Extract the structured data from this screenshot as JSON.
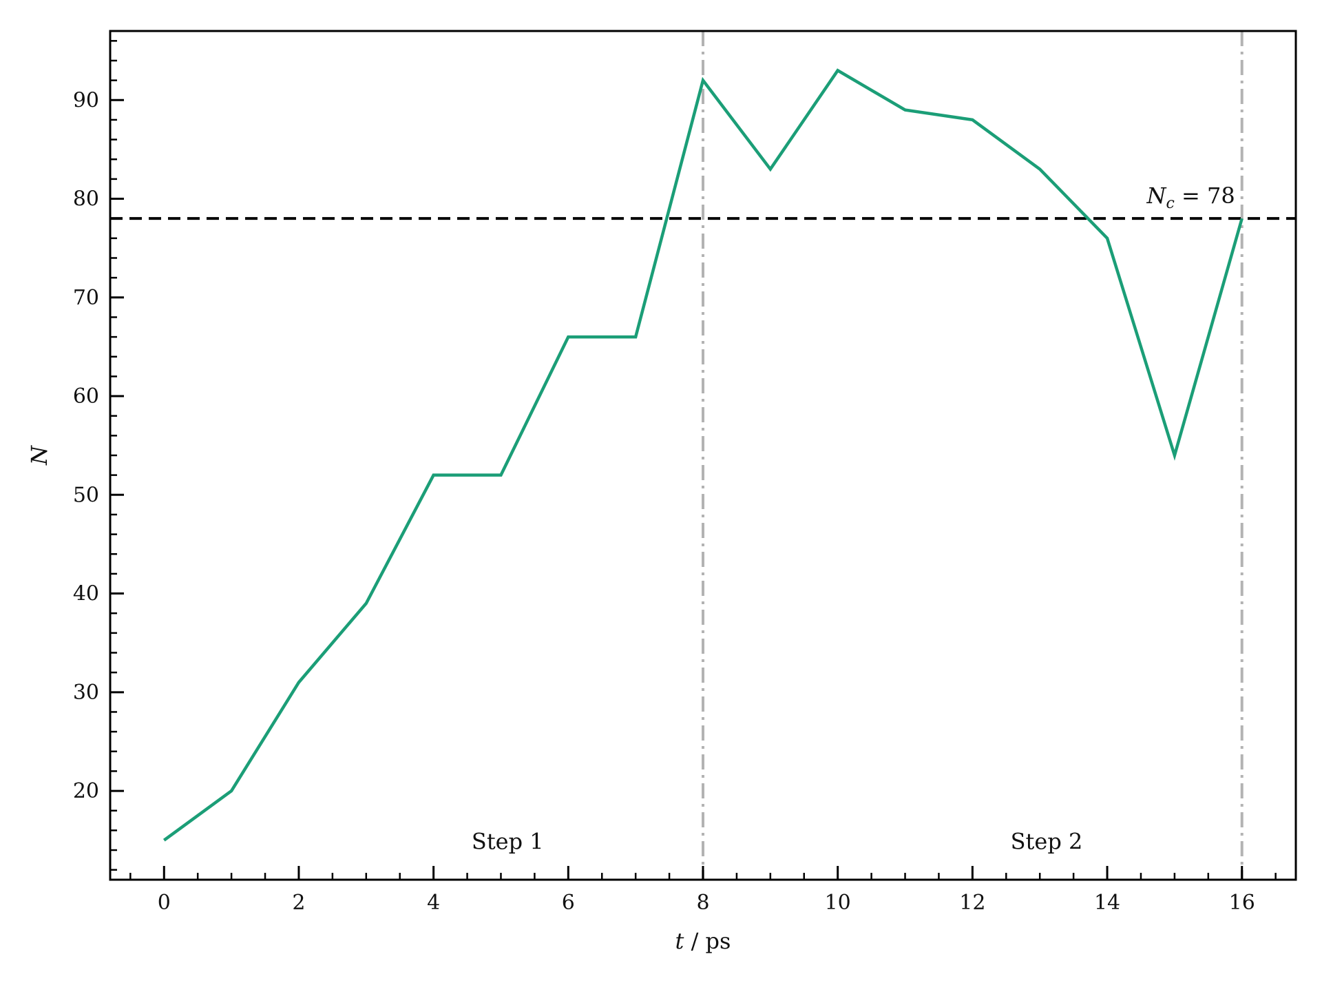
{
  "chart_data": {
    "type": "line",
    "x": [
      0,
      1,
      2,
      3,
      4,
      5,
      6,
      7,
      8,
      9,
      10,
      11,
      12,
      13,
      14,
      15,
      16
    ],
    "series": [
      {
        "values": [
          15,
          20,
          31,
          39,
          52,
          52,
          66,
          66,
          92,
          83,
          93,
          89,
          88,
          83,
          76,
          54,
          78
        ],
        "color": "#1b9e77"
      }
    ],
    "xlabel": {
      "var": "t",
      "unit": " / ps"
    },
    "ylabel": "N",
    "xlim": [
      -0.8,
      16.8
    ],
    "ylim": [
      11,
      97
    ],
    "xticks": [
      0,
      2,
      4,
      6,
      8,
      10,
      12,
      14,
      16
    ],
    "xtick_labels": [
      "0",
      "2",
      "4",
      "6",
      "8",
      "10",
      "12",
      "14",
      "16"
    ],
    "yticks": [
      20,
      30,
      40,
      50,
      60,
      70,
      80,
      90
    ],
    "ytick_labels": [
      "20",
      "30",
      "40",
      "50",
      "60",
      "70",
      "80",
      "90"
    ],
    "x_minor_step": 0.5,
    "y_minor_step": 2,
    "hline": {
      "y": 78,
      "label_var": "N",
      "label_sub": "c",
      "label_rest": " = 78",
      "color": "#000000",
      "style": "dashed"
    },
    "vlines": [
      {
        "x": 8,
        "color": "#b3b3b3",
        "style": "dashdot"
      },
      {
        "x": 16,
        "color": "#b3b3b3",
        "style": "dashdot"
      }
    ],
    "annotations": [
      {
        "text": "Step 1",
        "x": 5.1,
        "y": 14.8
      },
      {
        "text": "Step 2",
        "x": 13.1,
        "y": 14.8
      }
    ],
    "grid": false,
    "legend": false
  }
}
